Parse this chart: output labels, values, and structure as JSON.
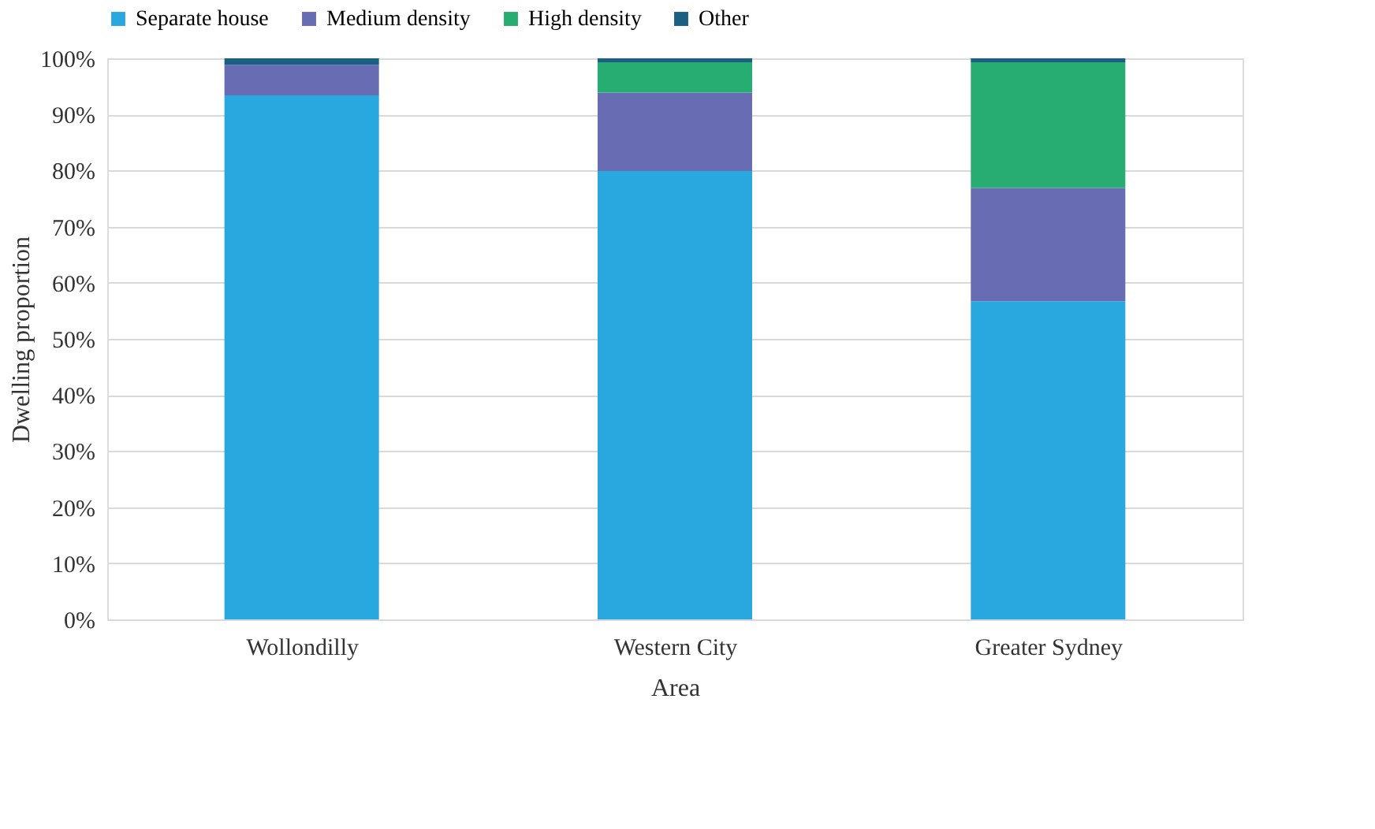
{
  "chart_data": {
    "type": "bar",
    "stacked": true,
    "xlabel": "Area",
    "ylabel": "Dwelling proportion",
    "categories": [
      "Wollondilly",
      "Western City",
      "Greater Sydney"
    ],
    "series": [
      {
        "name": "Separate house",
        "color": "#29a8e0",
        "values": [
          93.4,
          79.9,
          56.7
        ]
      },
      {
        "name": "Medium density",
        "color": "#686db3",
        "values": [
          5.4,
          14.0,
          20.2
        ]
      },
      {
        "name": "High density",
        "color": "#27ad72",
        "values": [
          0,
          5.4,
          22.4
        ]
      },
      {
        "name": "Other",
        "color": "#1b5f82",
        "values": [
          1.2,
          0.7,
          0.7
        ]
      }
    ],
    "ylim": [
      0,
      100
    ],
    "yticks": [
      {
        "value": 0,
        "label": "0%"
      },
      {
        "value": 10,
        "label": "10%"
      },
      {
        "value": 20,
        "label": "20%"
      },
      {
        "value": 30,
        "label": "30%"
      },
      {
        "value": 40,
        "label": "40%"
      },
      {
        "value": 50,
        "label": "50%"
      },
      {
        "value": 60,
        "label": "60%"
      },
      {
        "value": 70,
        "label": "70%"
      },
      {
        "value": 80,
        "label": "80%"
      },
      {
        "value": 90,
        "label": "90%"
      },
      {
        "value": 100,
        "label": "100%"
      }
    ],
    "grid": "y",
    "legend": "top"
  }
}
